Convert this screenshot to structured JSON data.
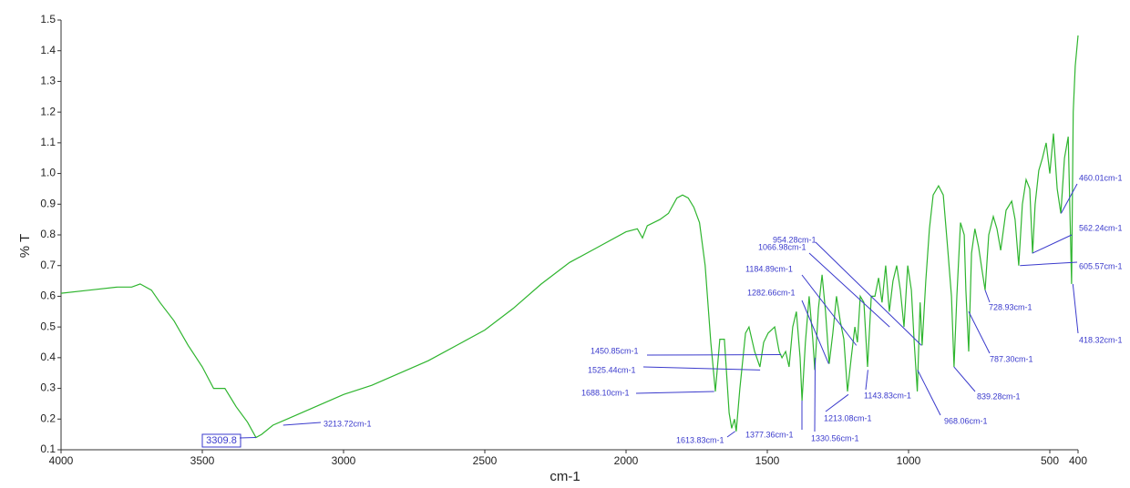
{
  "chart_data": {
    "type": "line",
    "x_label": "cm-1",
    "y_label": "% T",
    "xlim": [
      4000,
      400
    ],
    "ylim": [
      0.1,
      1.5
    ],
    "xticks": [
      4000,
      3500,
      3000,
      2500,
      2000,
      1500,
      1000,
      500,
      400
    ],
    "yticks": [
      0.1,
      0.2,
      0.3,
      0.4,
      0.5,
      0.6,
      0.7,
      0.8,
      0.9,
      {
        "value": 1,
        "label": "1.0"
      },
      1.1,
      1.2,
      1.3,
      1.4,
      1.5
    ],
    "color": "#2fb52f",
    "x": [
      4000,
      3900,
      3800,
      3750,
      3720,
      3680,
      3650,
      3600,
      3550,
      3500,
      3460,
      3420,
      3380,
      3340,
      3310,
      3290,
      3250,
      3200,
      3100,
      3000,
      2900,
      2800,
      2700,
      2600,
      2500,
      2400,
      2300,
      2200,
      2100,
      2000,
      1960,
      1942,
      1925,
      1880,
      1850,
      1820,
      1800,
      1780,
      1760,
      1740,
      1720,
      1700,
      1684,
      1668,
      1652,
      1635,
      1626,
      1616,
      1610,
      1597,
      1577,
      1565,
      1545,
      1526,
      1513,
      1497,
      1474,
      1458,
      1448,
      1435,
      1423,
      1410,
      1397,
      1384,
      1377,
      1365,
      1352,
      1339,
      1332,
      1319,
      1306,
      1294,
      1281,
      1268,
      1255,
      1242,
      1229,
      1216,
      1203,
      1190,
      1181,
      1171,
      1158,
      1145,
      1132,
      1119,
      1106,
      1094,
      1081,
      1068,
      1055,
      1042,
      1029,
      1016,
      1003,
      990,
      980,
      969,
      959,
      952,
      939,
      926,
      913,
      894,
      877,
      861,
      848,
      839,
      829,
      816,
      803,
      797,
      787,
      777,
      765,
      752,
      739,
      729,
      716,
      700,
      687,
      674,
      655,
      635,
      623,
      610,
      597,
      584,
      571,
      561,
      552,
      539,
      526,
      513,
      500,
      487,
      474,
      461,
      448,
      435,
      423,
      417,
      410,
      400
    ],
    "values": [
      0.61,
      0.62,
      0.63,
      0.63,
      0.64,
      0.62,
      0.58,
      0.52,
      0.44,
      0.37,
      0.3,
      0.3,
      0.24,
      0.19,
      0.14,
      0.15,
      0.18,
      0.2,
      0.24,
      0.28,
      0.31,
      0.35,
      0.39,
      0.44,
      0.49,
      0.56,
      0.64,
      0.71,
      0.76,
      0.81,
      0.82,
      0.79,
      0.83,
      0.85,
      0.87,
      0.92,
      0.93,
      0.92,
      0.89,
      0.84,
      0.7,
      0.45,
      0.29,
      0.46,
      0.46,
      0.22,
      0.17,
      0.2,
      0.16,
      0.3,
      0.48,
      0.5,
      0.42,
      0.37,
      0.45,
      0.48,
      0.5,
      0.42,
      0.4,
      0.42,
      0.37,
      0.5,
      0.55,
      0.4,
      0.26,
      0.45,
      0.6,
      0.46,
      0.36,
      0.56,
      0.67,
      0.55,
      0.38,
      0.48,
      0.6,
      0.52,
      0.46,
      0.29,
      0.4,
      0.5,
      0.45,
      0.6,
      0.58,
      0.37,
      0.6,
      0.6,
      0.66,
      0.58,
      0.7,
      0.55,
      0.65,
      0.7,
      0.62,
      0.5,
      0.7,
      0.62,
      0.45,
      0.29,
      0.58,
      0.44,
      0.65,
      0.82,
      0.93,
      0.96,
      0.93,
      0.75,
      0.6,
      0.37,
      0.6,
      0.84,
      0.8,
      0.62,
      0.42,
      0.74,
      0.82,
      0.76,
      0.68,
      0.62,
      0.8,
      0.86,
      0.82,
      0.75,
      0.88,
      0.91,
      0.85,
      0.7,
      0.9,
      0.98,
      0.95,
      0.74,
      0.9,
      1.01,
      1.05,
      1.1,
      1.0,
      1.13,
      0.95,
      0.87,
      1.05,
      1.12,
      0.64,
      1.2,
      1.35,
      1.45
    ],
    "annotations": [
      {
        "text": "3309.8",
        "x": 3309.8,
        "y": 0.14,
        "boxed": true
      },
      {
        "text": "3213.72cm-1",
        "x": 3213.72,
        "y": 0.18
      },
      {
        "text": "1688.10cm-1",
        "x": 1688.1,
        "y": 0.29
      },
      {
        "text": "1613.83cm-1",
        "x": 1613.83,
        "y": 0.16
      },
      {
        "text": "1525.44cm-1",
        "x": 1525.44,
        "y": 0.36
      },
      {
        "text": "1450.85cm-1",
        "x": 1450.85,
        "y": 0.41
      },
      {
        "text": "1377.36cm-1",
        "x": 1377.36,
        "y": 0.26
      },
      {
        "text": "1330.56cm-1",
        "x": 1330.56,
        "y": 0.4
      },
      {
        "text": "1282.66cm-1",
        "x": 1282.66,
        "y": 0.38
      },
      {
        "text": "1213.08cm-1",
        "x": 1213.08,
        "y": 0.28
      },
      {
        "text": "1184.89cm-1",
        "x": 1184.89,
        "y": 0.44
      },
      {
        "text": "1143.83cm-1",
        "x": 1143.83,
        "y": 0.36
      },
      {
        "text": "1066.98cm-1",
        "x": 1066.98,
        "y": 0.5
      },
      {
        "text": "954.28cm-1",
        "x": 954.28,
        "y": 0.44
      },
      {
        "text": "968.06cm-1",
        "x": 968.06,
        "y": 0.36
      },
      {
        "text": "839.28cm-1",
        "x": 839.28,
        "y": 0.37
      },
      {
        "text": "787.30cm-1",
        "x": 787.3,
        "y": 0.55
      },
      {
        "text": "728.93cm-1",
        "x": 728.93,
        "y": 0.62
      },
      {
        "text": "605.57cm-1",
        "x": 605.57,
        "y": 0.7
      },
      {
        "text": "562.24cm-1",
        "x": 562.24,
        "y": 0.74
      },
      {
        "text": "460.01cm-1",
        "x": 460.01,
        "y": 0.87
      },
      {
        "text": "418.32cm-1",
        "x": 418.32,
        "y": 0.64
      }
    ]
  }
}
